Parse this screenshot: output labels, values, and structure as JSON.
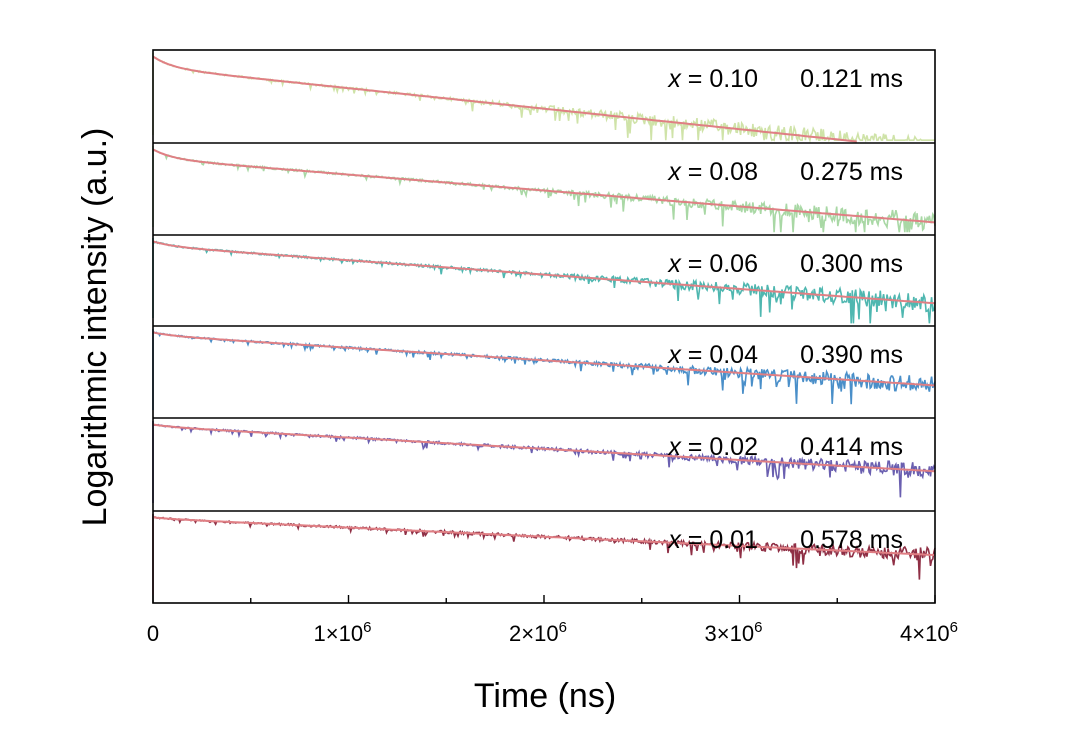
{
  "chart_data": {
    "type": "line",
    "xlabel": "Time (ns)",
    "ylabel": "Logarithmic intensity (a.u.)",
    "xlim": [
      0,
      4000000
    ],
    "x_ticks": [
      "0",
      "1×10",
      "2×10",
      "3×10",
      "4×10"
    ],
    "x_tick_exp": [
      "",
      "6",
      "6",
      "6",
      "6"
    ],
    "y_scale": "log",
    "y_tick_labels": "none",
    "grid": false,
    "legend": "none",
    "panels": [
      {
        "label_var": "x",
        "label_eq": " = 0.10",
        "lifetime": "0.121 ms",
        "lifetime_ms": 0.121,
        "color": "#cfe3a8",
        "fit_color": "#e07f84",
        "decay": {
          "start_drop": 0.12,
          "linear_slope": 0.42,
          "noise_from": 0.4
        }
      },
      {
        "label_var": "x",
        "label_eq": " = 0.08",
        "lifetime": "0.275 ms",
        "lifetime_ms": 0.275,
        "color": "#a9d8a5",
        "fit_color": "#e07f84",
        "decay": {
          "start_drop": 0.1,
          "linear_slope": 0.33,
          "noise_from": 0.5
        }
      },
      {
        "label_var": "x",
        "label_eq": " = 0.06",
        "lifetime": "0.300 ms",
        "lifetime_ms": 0.3,
        "color": "#4fb7b0",
        "fit_color": "#e07f84",
        "decay": {
          "start_drop": 0.05,
          "linear_slope": 0.3,
          "noise_from": 0.5
        }
      },
      {
        "label_var": "x",
        "label_eq": " = 0.04",
        "lifetime": "0.390 ms",
        "lifetime_ms": 0.39,
        "color": "#4a8fc9",
        "fit_color": "#e07f84",
        "decay": {
          "start_drop": 0.03,
          "linear_slope": 0.26,
          "noise_from": 0.55
        }
      },
      {
        "label_var": "x",
        "label_eq": " = 0.02",
        "lifetime": "0.414 ms",
        "lifetime_ms": 0.414,
        "color": "#6a5fb0",
        "fit_color": "#e07f84",
        "decay": {
          "start_drop": 0.02,
          "linear_slope": 0.23,
          "noise_from": 0.6
        }
      },
      {
        "label_var": "x",
        "label_eq": " = 0.01",
        "lifetime": "0.578 ms",
        "lifetime_ms": 0.578,
        "color": "#8f2f45",
        "fit_color": "#e07f84",
        "decay": {
          "start_drop": 0.01,
          "linear_slope": 0.19,
          "noise_from": 0.65
        }
      }
    ]
  }
}
